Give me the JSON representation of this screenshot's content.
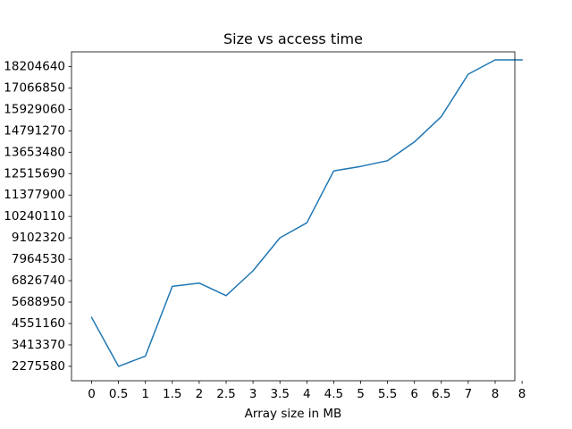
{
  "chart_data": {
    "type": "line",
    "title": "Size vs access time",
    "xlabel": "Array size in MB",
    "ylabel": "",
    "grid": false,
    "color": "#1f77b4",
    "x_ticks": [
      "0",
      "0.5",
      "1",
      "1.5",
      "2",
      "2.5",
      "3",
      "3.5",
      "4",
      "4.5",
      "5",
      "5.5",
      "6",
      "6.5",
      "7",
      "8",
      "8"
    ],
    "y_ticks": [
      "2275580",
      "3413370",
      "4551160",
      "5688950",
      "6826740",
      "7964530",
      "9102320",
      "10240110",
      "11377900",
      "12515690",
      "13653480",
      "14791270",
      "15929060",
      "17066850",
      "18204640"
    ],
    "series": [
      {
        "values": [
          4873000,
          2275580,
          2822000,
          6527000,
          6700000,
          6030000,
          7350000,
          9102320,
          9900000,
          12661000,
          12900000,
          13200000,
          14200000,
          15550000,
          17800000,
          18560000,
          18560000
        ]
      }
    ]
  }
}
